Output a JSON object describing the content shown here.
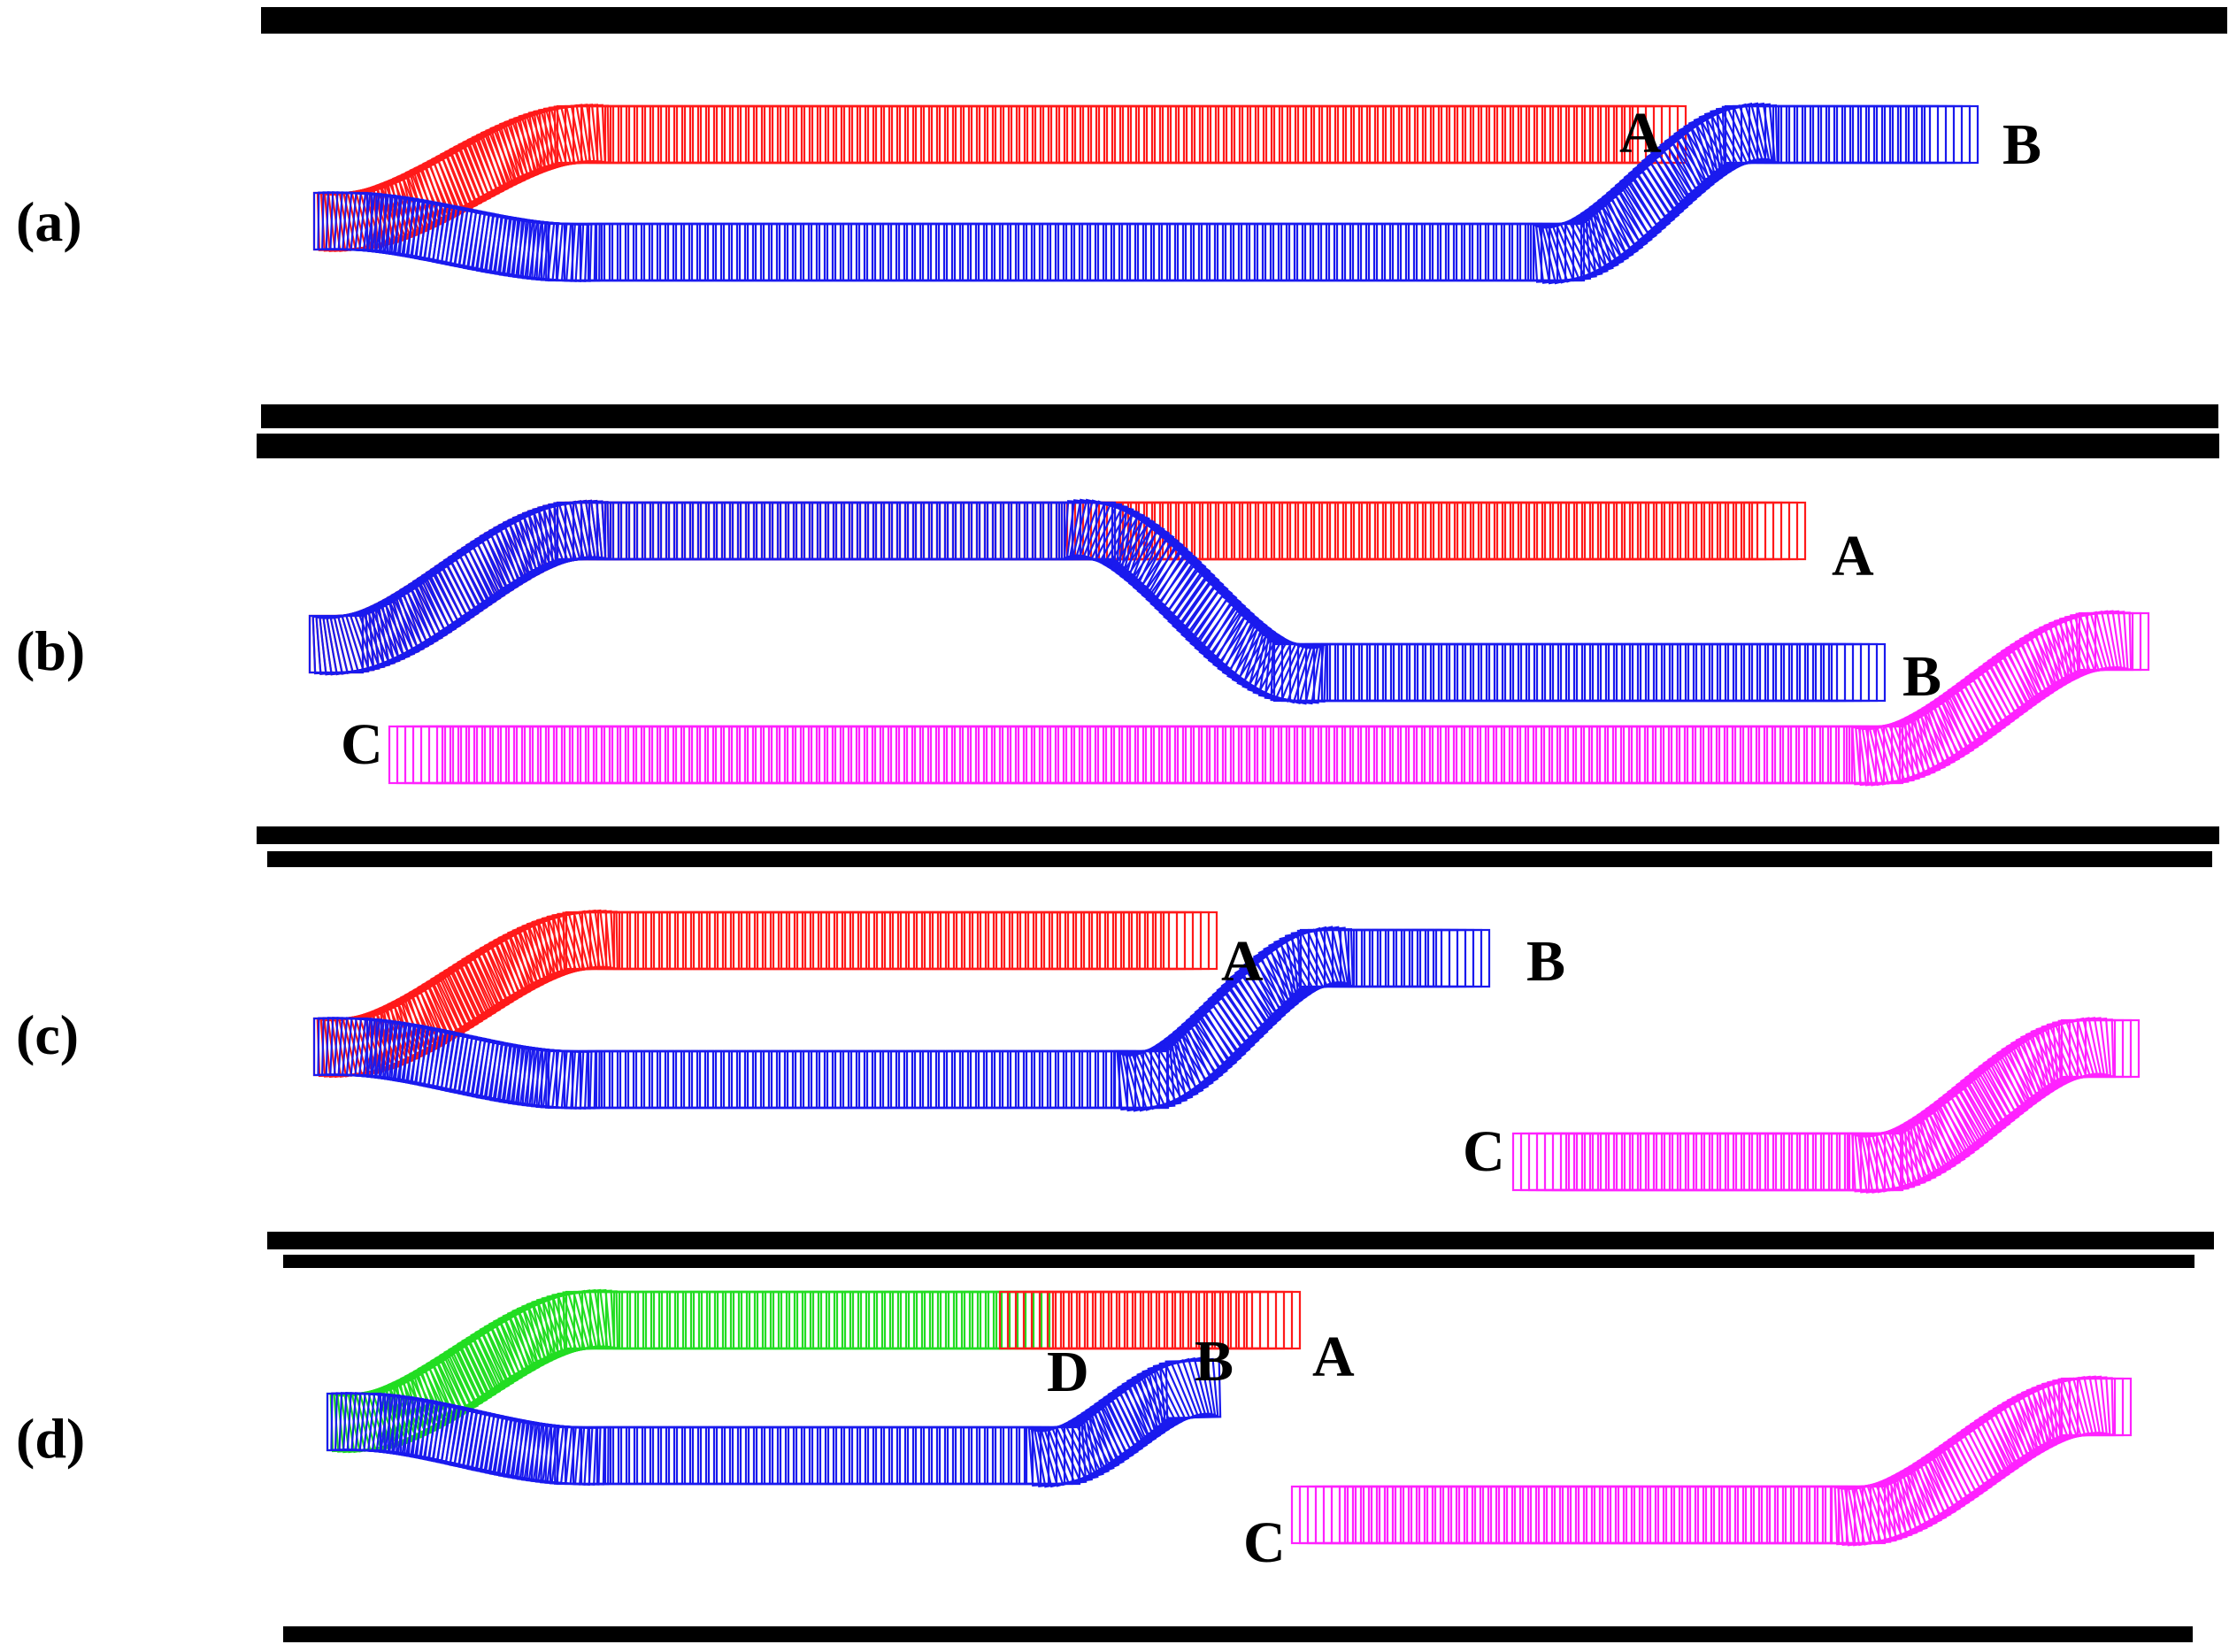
{
  "colors": {
    "red": "#ff1a1a",
    "blue": "#1a1aee",
    "magenta": "#ff22ff",
    "green": "#22dd22",
    "barrier": "#000000"
  },
  "panels": [
    {
      "label": "(a)",
      "vehicles": [
        {
          "name": "A",
          "color": "red"
        },
        {
          "name": "B",
          "color": "blue"
        }
      ]
    },
    {
      "label": "(b)",
      "vehicles": [
        {
          "name": "A",
          "color": "red"
        },
        {
          "name": "B",
          "color": "blue"
        },
        {
          "name": "C",
          "color": "magenta"
        }
      ]
    },
    {
      "label": "(c)",
      "vehicles": [
        {
          "name": "A",
          "color": "red"
        },
        {
          "name": "B",
          "color": "blue"
        },
        {
          "name": "C",
          "color": "magenta"
        }
      ]
    },
    {
      "label": "(d)",
      "vehicles": [
        {
          "name": "A",
          "color": "red"
        },
        {
          "name": "B",
          "color": "blue"
        },
        {
          "name": "C",
          "color": "magenta"
        },
        {
          "name": "D",
          "color": "green"
        }
      ]
    }
  ]
}
